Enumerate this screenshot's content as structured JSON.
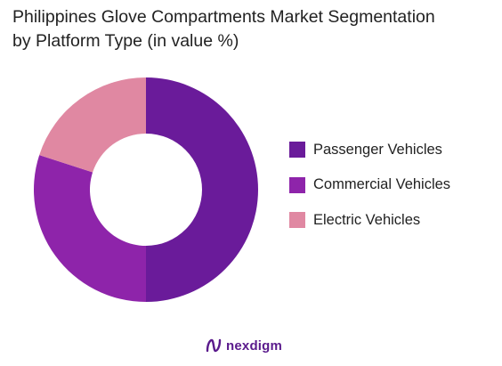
{
  "title_line1": "Philippines Glove Compartments Market Segmentation",
  "title_line2": "by Platform Type (in value %)",
  "brand": {
    "name": "nexdigm",
    "icon": "nexdigm-logo-icon"
  },
  "chart_data": {
    "type": "donut",
    "title": "Philippines Glove Compartments Market Segmentation by Platform Type (in value %)",
    "legend_position": "right",
    "series": [
      {
        "name": "Passenger Vehicles",
        "value": 50,
        "color": "#6a1b9a"
      },
      {
        "name": "Commercial Vehicles",
        "value": 30,
        "color": "#8e24aa"
      },
      {
        "name": "Electric Vehicles",
        "value": 20,
        "color": "#e088a2"
      }
    ]
  }
}
